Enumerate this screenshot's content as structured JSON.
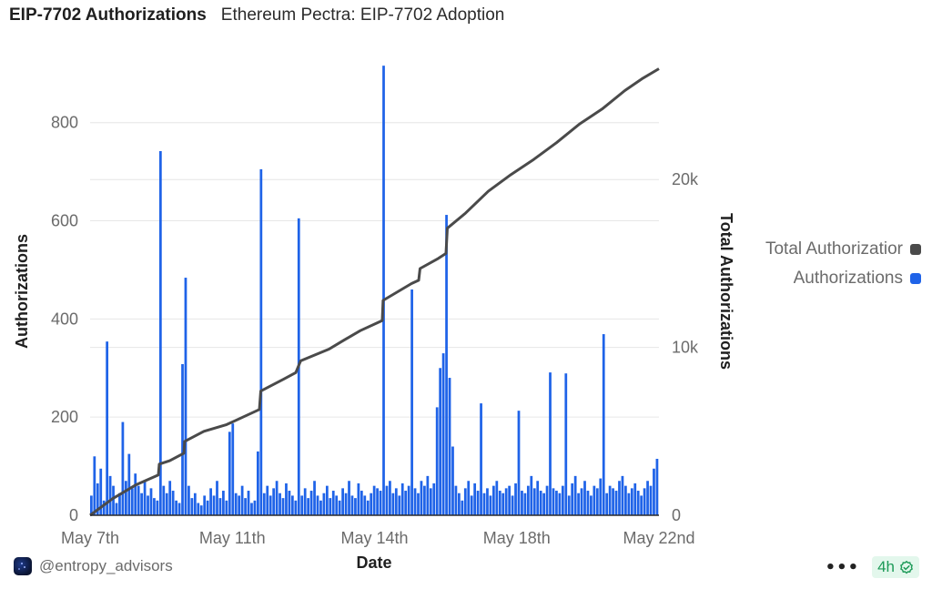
{
  "header": {
    "title": "EIP-7702 Authorizations",
    "subtitle": "Ethereum Pectra: EIP-7702 Adoption"
  },
  "footer": {
    "author": "@entropy_advisors",
    "more_label": "•••",
    "freshness_badge": "4h",
    "avatar_icon": "entropy-logo-icon",
    "badge_icon": "verified-check-icon"
  },
  "colors": {
    "bars": "#1f63e8",
    "line": "#4a4a4a",
    "grid": "#e6e6e6"
  },
  "chart_data": {
    "type": "bar+line",
    "title": "EIP-7702 Authorizations",
    "xlabel": "Date",
    "ylabel": "Authorizations",
    "y2label": "Total Authorizations",
    "x_ticks": [
      "May 7th",
      "May 11th",
      "May 14th",
      "May 18th",
      "May 22nd"
    ],
    "y_ticks": [
      0,
      200,
      400,
      600,
      800
    ],
    "y_tick_labels": [
      "0",
      "200",
      "400",
      "600",
      "800"
    ],
    "ylim": [
      0,
      920
    ],
    "y2_ticks": [
      0,
      10000,
      20000
    ],
    "y2_tick_labels": [
      "0",
      "10k",
      "20k"
    ],
    "y2lim": [
      0,
      26900
    ],
    "grid": true,
    "legend_position": "right",
    "legend": [
      {
        "name": "Total Authorizations",
        "display": "Total Authorizatior",
        "color": "#4a4a4a"
      },
      {
        "name": "Authorizations",
        "display": "Authorizations",
        "color": "#1f63e8"
      }
    ],
    "series": [
      {
        "name": "Authorizations",
        "type": "bar",
        "axis": "left",
        "values": [
          40,
          120,
          65,
          95,
          30,
          354,
          80,
          60,
          25,
          45,
          190,
          70,
          125,
          55,
          85,
          60,
          45,
          70,
          40,
          55,
          35,
          30,
          742,
          60,
          45,
          70,
          50,
          30,
          25,
          308,
          484,
          60,
          35,
          45,
          25,
          20,
          40,
          30,
          55,
          40,
          70,
          35,
          50,
          30,
          170,
          187,
          45,
          40,
          60,
          35,
          50,
          25,
          30,
          130,
          705,
          45,
          60,
          40,
          55,
          70,
          45,
          35,
          65,
          50,
          40,
          30,
          605,
          40,
          55,
          35,
          50,
          70,
          40,
          30,
          45,
          60,
          35,
          50,
          40,
          30,
          55,
          45,
          70,
          40,
          35,
          65,
          50,
          40,
          30,
          45,
          60,
          55,
          50,
          916,
          60,
          70,
          45,
          55,
          40,
          65,
          50,
          60,
          460,
          55,
          45,
          70,
          60,
          80,
          55,
          65,
          220,
          300,
          330,
          612,
          280,
          140,
          60,
          45,
          30,
          55,
          70,
          40,
          65,
          50,
          228,
          45,
          55,
          40,
          60,
          70,
          50,
          45,
          55,
          60,
          40,
          65,
          213,
          50,
          45,
          60,
          80,
          55,
          70,
          50,
          45,
          60,
          291,
          55,
          50,
          45,
          60,
          289,
          40,
          65,
          80,
          45,
          55,
          70,
          50,
          40,
          60,
          55,
          75,
          369,
          45,
          60,
          55,
          50,
          70,
          80,
          60,
          45,
          55,
          65,
          50,
          40,
          55,
          70,
          60,
          95,
          115
        ]
      },
      {
        "name": "Total Authorizations",
        "type": "line",
        "axis": "right",
        "x_fraction": [
          0,
          0.04,
          0.08,
          0.12,
          0.1216,
          0.14,
          0.165,
          0.166,
          0.2,
          0.24,
          0.2976,
          0.3,
          0.34,
          0.3616,
          0.37,
          0.42,
          0.4448,
          0.475,
          0.5136,
          0.515,
          0.565,
          0.5776,
          0.58,
          0.612,
          0.6256,
          0.628,
          0.66,
          0.7,
          0.74,
          0.78,
          0.82,
          0.86,
          0.9,
          0.94,
          0.97,
          1.0
        ],
        "values": [
          0,
          1000,
          1800,
          2400,
          3050,
          3250,
          3700,
          4400,
          5000,
          5400,
          6300,
          7400,
          8100,
          8500,
          9200,
          9900,
          10400,
          11000,
          11600,
          12800,
          13800,
          14000,
          14700,
          15300,
          15600,
          17100,
          18000,
          19300,
          20300,
          21200,
          22200,
          23300,
          24200,
          25300,
          26000,
          26600
        ]
      }
    ]
  }
}
